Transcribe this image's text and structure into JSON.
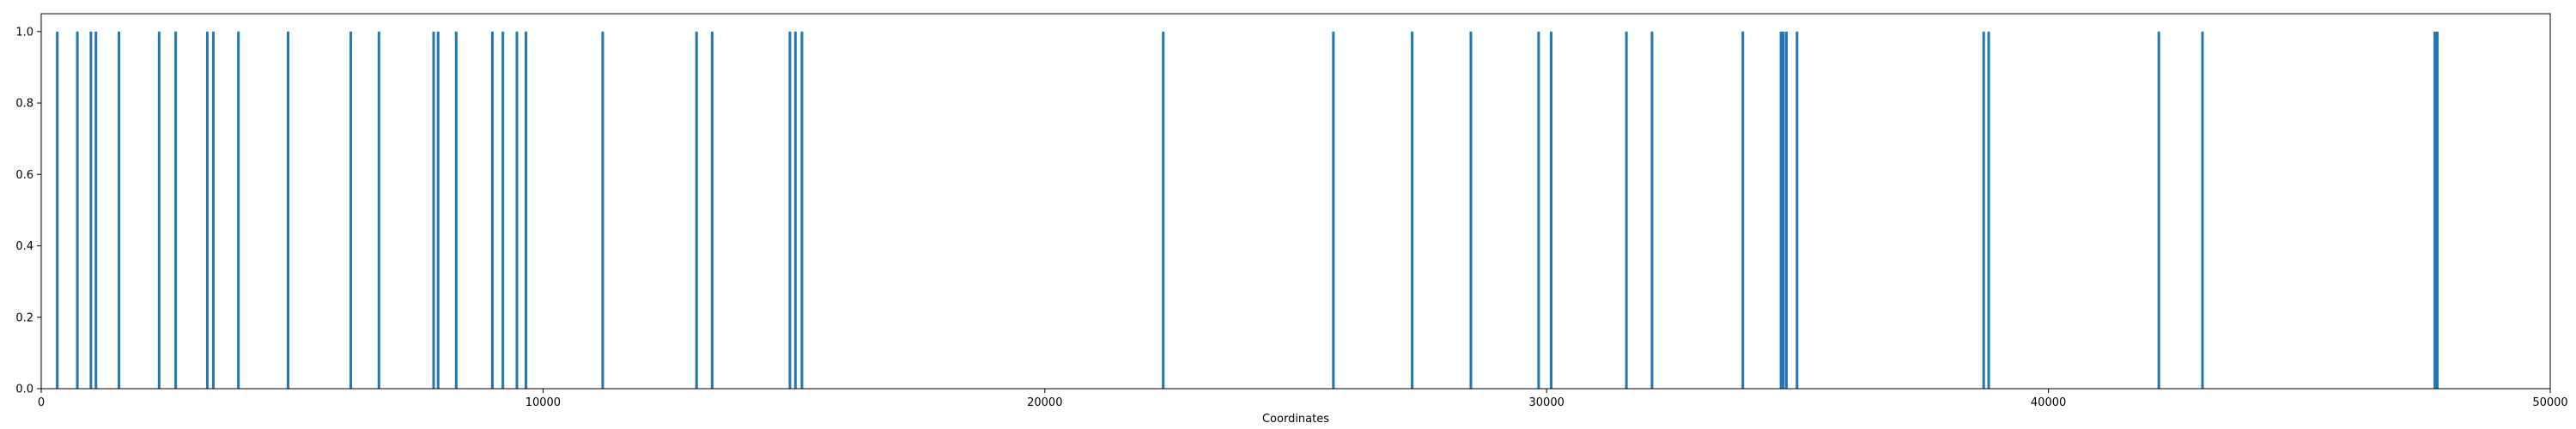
{
  "chart_data": {
    "type": "bar",
    "title": "",
    "xlabel": "Coordinates",
    "ylabel": "",
    "xlim": [
      0,
      50000
    ],
    "ylim": [
      0,
      1.05
    ],
    "x_ticks": [
      0,
      10000,
      20000,
      30000,
      40000,
      50000
    ],
    "y_ticks": [
      0.0,
      0.2,
      0.4,
      0.6,
      0.8,
      1.0
    ],
    "x_tick_labels": [
      "0",
      "10000",
      "20000",
      "30000",
      "40000",
      "50000"
    ],
    "y_tick_labels": [
      "0.0",
      "0.2",
      "0.4",
      "0.6",
      "0.8",
      "1.0"
    ],
    "grid": false,
    "legend": "none",
    "series": [
      {
        "color": "#1f77b4",
        "x": [
          320,
          720,
          990,
          1090,
          1550,
          2350,
          2680,
          3310,
          3430,
          3930,
          4920,
          6170,
          6730,
          7820,
          7910,
          8270,
          8990,
          9200,
          9480,
          9660,
          11190,
          13060,
          13370,
          14920,
          15030,
          15160,
          22360,
          25750,
          27320,
          28490,
          29840,
          30090,
          31590,
          32100,
          33910,
          34670,
          34720,
          34780,
          34990,
          38710,
          38810,
          42200,
          43070,
          47700,
          47750
        ],
        "values": [
          1,
          1,
          1,
          1,
          1,
          1,
          1,
          1,
          1,
          1,
          1,
          1,
          1,
          1,
          1,
          1,
          1,
          1,
          1,
          1,
          1,
          1,
          1,
          1,
          1,
          1,
          1,
          1,
          1,
          1,
          1,
          1,
          1,
          1,
          1,
          1,
          1,
          1,
          1,
          1,
          1,
          1,
          1,
          1,
          1
        ]
      }
    ]
  }
}
